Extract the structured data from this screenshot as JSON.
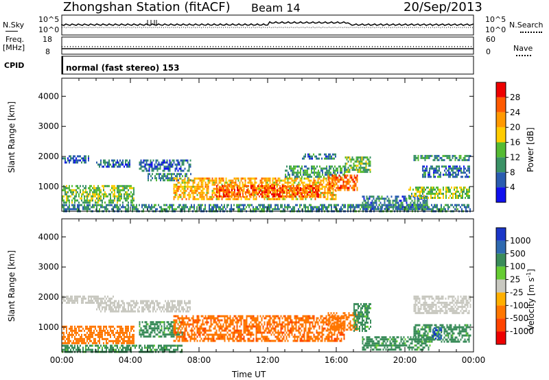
{
  "header": {
    "title": "Zhongshan Station (fitACF)",
    "beam": "Beam 14",
    "date": "20/Sep/2013"
  },
  "strips": {
    "nsky_label": "N.Sky",
    "nsearch_label": "N.Search",
    "freq_label_1": "Freq.",
    "freq_label_2": "[MHz]",
    "nave_label": "Nave",
    "cpid_label": "CPID",
    "cpid_value": "normal (fast stereo) 153",
    "nsky_ticks": [
      "10^5",
      "10^0"
    ],
    "nsearch_ticks": [
      "10^5",
      "10^0"
    ],
    "freq_ticks": [
      "18",
      "8"
    ],
    "nave_ticks": [
      "60",
      "0"
    ]
  },
  "chart_data": [
    {
      "type": "heatmap",
      "name": "power",
      "ylabel": "Slant Range [km]",
      "xlabel": "",
      "ylim": [
        180,
        4600
      ],
      "xlim": [
        0,
        24
      ],
      "yticks": [
        1000,
        2000,
        3000,
        4000
      ],
      "colorbar": {
        "label": "Power [dB]",
        "ticks": [
          "28",
          "24",
          "20",
          "16",
          "12",
          "8",
          "4"
        ],
        "colors": [
          "#ee0000",
          "#ff5a00",
          "#ff9900",
          "#ffcc00",
          "#55bb33",
          "#3a9266",
          "#2a5cb0",
          "#1010ee"
        ]
      },
      "bands": [
        {
          "x": [
            0,
            1.6
          ],
          "y": [
            1780,
            2040
          ],
          "value": 6
        },
        {
          "x": [
            0,
            4.2
          ],
          "y": [
            500,
            1050
          ],
          "value": 14
        },
        {
          "x": [
            2,
            4
          ],
          "y": [
            1650,
            1900
          ],
          "value": 7
        },
        {
          "x": [
            4.5,
            7.5
          ],
          "y": [
            1500,
            1900
          ],
          "value": 7
        },
        {
          "x": [
            5,
            7.5
          ],
          "y": [
            1200,
            1450
          ],
          "value": 9
        },
        {
          "x": [
            6.5,
            16
          ],
          "y": [
            600,
            1300
          ],
          "value": 20
        },
        {
          "x": [
            9,
            15
          ],
          "y": [
            700,
            1050
          ],
          "value": 26
        },
        {
          "x": [
            13,
            16.5
          ],
          "y": [
            1300,
            1700
          ],
          "value": 11
        },
        {
          "x": [
            15.5,
            17.2
          ],
          "y": [
            900,
            1400
          ],
          "value": 25
        },
        {
          "x": [
            14,
            16
          ],
          "y": [
            1900,
            2100
          ],
          "value": 8
        },
        {
          "x": [
            16.5,
            18
          ],
          "y": [
            1500,
            2000
          ],
          "value": 13
        },
        {
          "x": [
            17.5,
            21.3
          ],
          "y": [
            250,
            700
          ],
          "value": 8
        },
        {
          "x": [
            20.2,
            23.8
          ],
          "y": [
            650,
            1000
          ],
          "value": 15
        },
        {
          "x": [
            21,
            23.8
          ],
          "y": [
            1300,
            1700
          ],
          "value": 8
        },
        {
          "x": [
            20.5,
            23.8
          ],
          "y": [
            1850,
            2050
          ],
          "value": 10
        },
        {
          "x": [
            0,
            23.8
          ],
          "y": [
            200,
            420
          ],
          "value": 9
        }
      ]
    },
    {
      "type": "heatmap",
      "name": "velocity",
      "ylabel": "Slant Range [km]",
      "xlabel": "Time UT",
      "ylim": [
        180,
        4600
      ],
      "xlim": [
        0,
        24
      ],
      "yticks": [
        1000,
        2000,
        3000,
        4000
      ],
      "xticks": [
        "00:00",
        "04:00",
        "08:00",
        "12:00",
        "16:00",
        "20:00",
        "00:00"
      ],
      "colorbar": {
        "label": "Velocity [m s^-1]",
        "ticks": [
          "1000",
          "500",
          "100",
          "25",
          "-25",
          "-100",
          "-500",
          "-1000"
        ],
        "colors": [
          "#1a36c8",
          "#2f6ab0",
          "#3a8c5a",
          "#66cc33",
          "#c8c8c0",
          "#ffb000",
          "#ff7700",
          "#ff4400",
          "#ee0000"
        ]
      },
      "bands": [
        {
          "x": [
            0,
            3
          ],
          "y": [
            1800,
            2050
          ],
          "value": 0
        },
        {
          "x": [
            0,
            4.2
          ],
          "y": [
            500,
            1050
          ],
          "value": -300
        },
        {
          "x": [
            2,
            7.5
          ],
          "y": [
            1550,
            1900
          ],
          "value": 0
        },
        {
          "x": [
            4.5,
            7
          ],
          "y": [
            700,
            1200
          ],
          "value": 150
        },
        {
          "x": [
            6.5,
            16.5
          ],
          "y": [
            550,
            1400
          ],
          "value": -400
        },
        {
          "x": [
            15.5,
            17.2
          ],
          "y": [
            900,
            1500
          ],
          "value": -200
        },
        {
          "x": [
            17,
            18
          ],
          "y": [
            900,
            1800
          ],
          "value": 150
        },
        {
          "x": [
            17.5,
            21.5
          ],
          "y": [
            250,
            700
          ],
          "value": 150
        },
        {
          "x": [
            20.5,
            23.8
          ],
          "y": [
            500,
            1100
          ],
          "value": 150
        },
        {
          "x": [
            21.6,
            22.1
          ],
          "y": [
            600,
            1000
          ],
          "value": 800
        },
        {
          "x": [
            20.5,
            23.8
          ],
          "y": [
            1500,
            2050
          ],
          "value": 0
        },
        {
          "x": [
            0,
            7
          ],
          "y": [
            200,
            420
          ],
          "value": 150
        }
      ]
    }
  ]
}
